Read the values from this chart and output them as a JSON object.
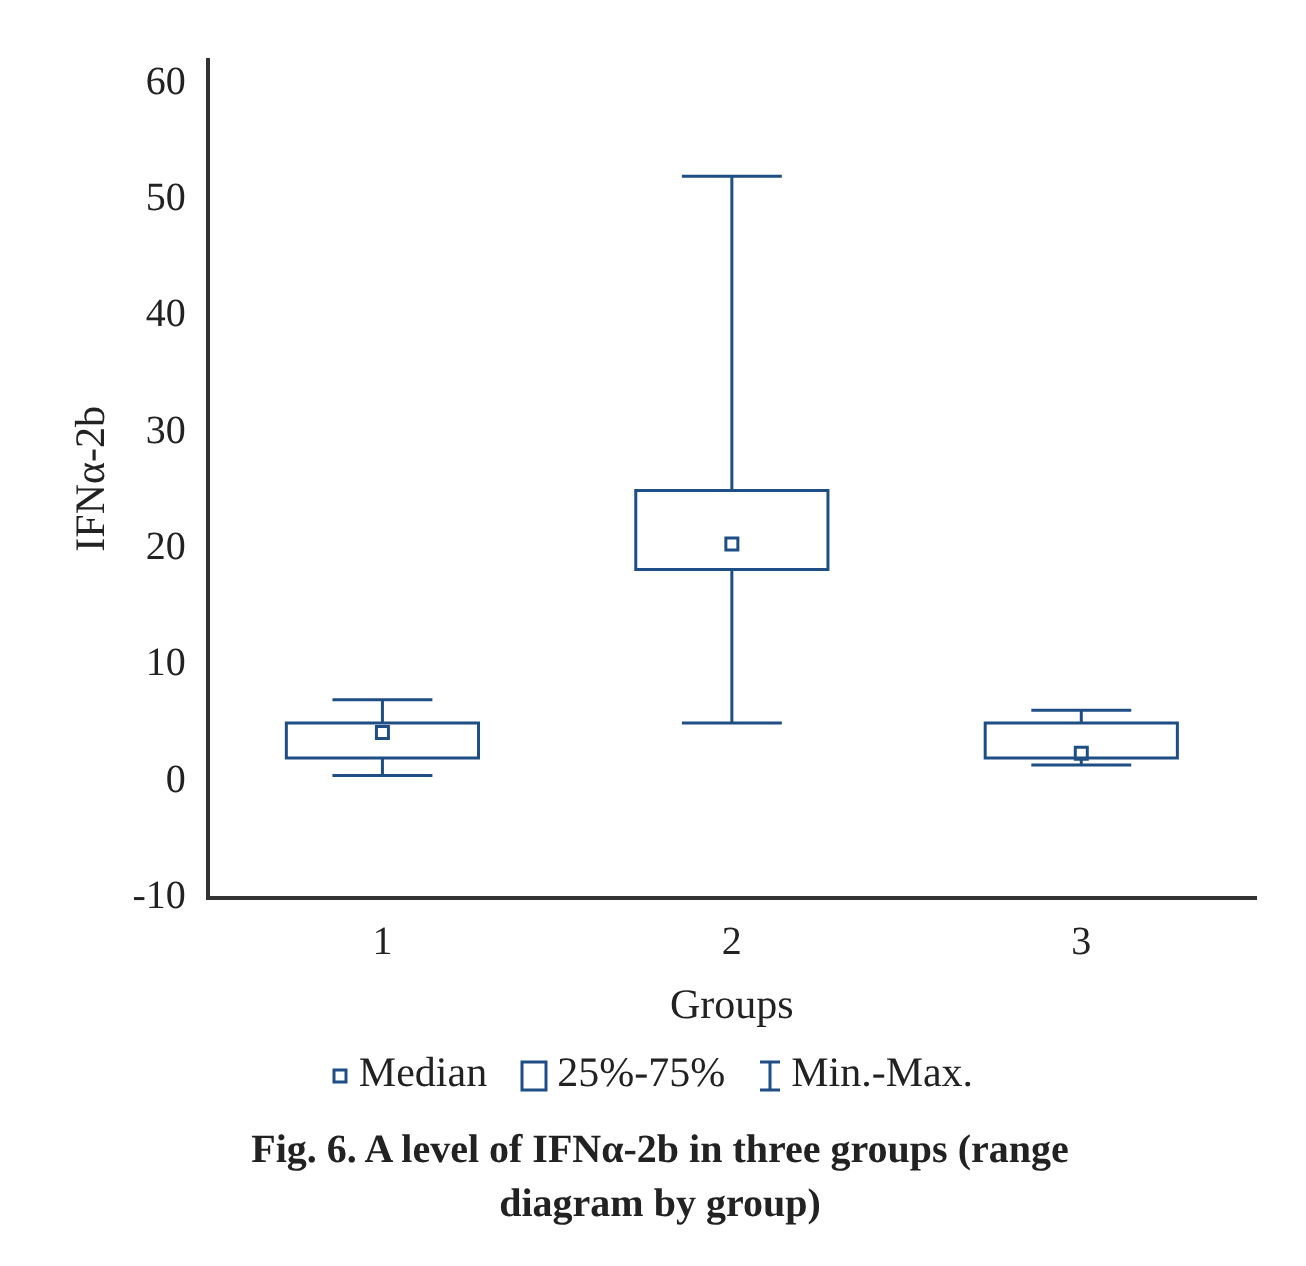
{
  "chart_data": {
    "type": "box",
    "title": "Fig. 6. A level of IFNα-2b in three groups (range diagram by group)",
    "xlabel": "Groups",
    "ylabel": "IFNα-2b",
    "categories": [
      "1",
      "2",
      "3"
    ],
    "series": [
      {
        "color": "#1f4e85",
        "boxes": [
          {
            "low": 0.5,
            "q1": 2,
            "median": 4.2,
            "q3": 5,
            "high": 7
          },
          {
            "low": 5,
            "q1": 18.2,
            "median": 20.4,
            "q3": 25,
            "high": 52
          },
          {
            "low": 1.4,
            "q1": 2,
            "median": 2.4,
            "q3": 5,
            "high": 6.1
          }
        ]
      }
    ],
    "annotations": [
      "Median",
      "25%-75%",
      "Min.-Max."
    ],
    "ylim": [
      -10,
      62
    ],
    "yticks": [
      -10,
      0,
      10,
      20,
      30,
      40,
      50,
      60
    ],
    "grid": false
  }
}
